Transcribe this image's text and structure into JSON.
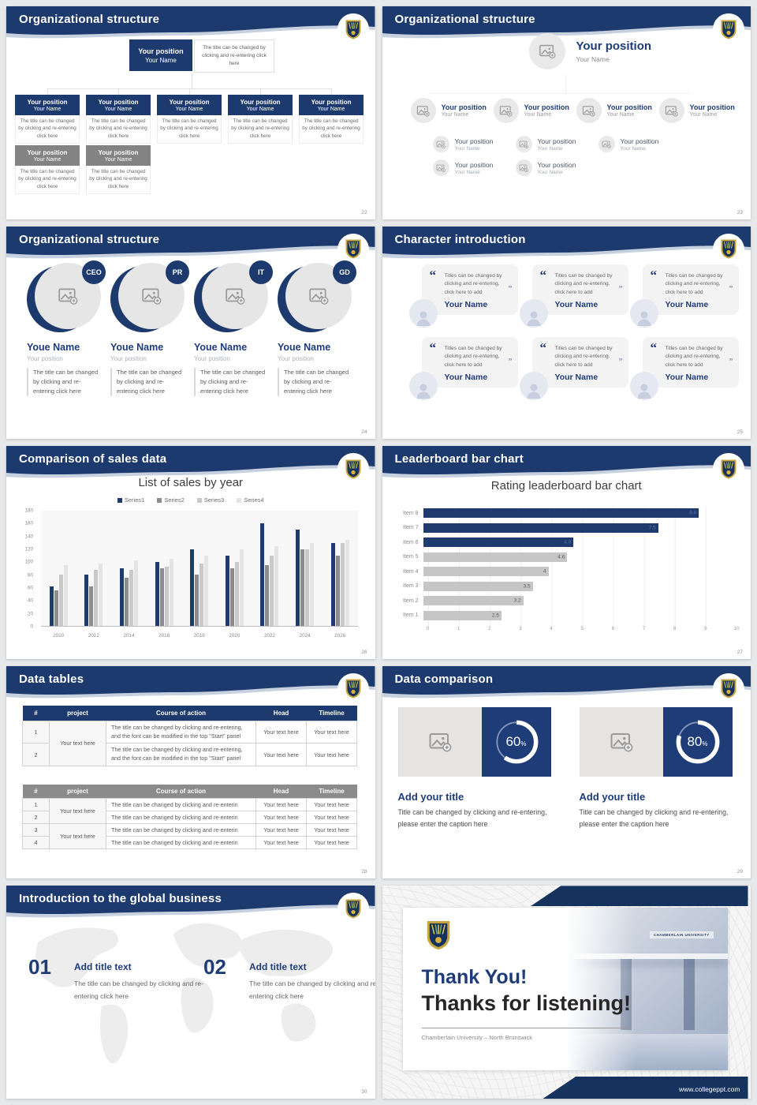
{
  "placeholders": {
    "position": "Your position",
    "name": "Your Name",
    "name_typo": "Youe Name",
    "caption": "The title can be changed by clicking and re-entering click here",
    "caption_long": "The title can be changed by clicking and re-entering, and the font can be modified in the top \"Start\" panel",
    "caption_short": "The title can be changed by clicking and re-enterin",
    "quote": "Titles can be changed by clicking and re-entering, click here to add",
    "your_text": "Your text here"
  },
  "slides": {
    "s22": {
      "title": "Organizational structure",
      "page": "22"
    },
    "s23": {
      "title": "Organizational structure",
      "page": "23"
    },
    "s24": {
      "title": "Organizational structure",
      "page": "24",
      "badges": [
        "CEO",
        "PR",
        "IT",
        "GD"
      ]
    },
    "s25": {
      "title": "Character introduction",
      "page": "25"
    },
    "s26": {
      "title": "Comparison of sales data",
      "page": "26"
    },
    "s27": {
      "title": "Leaderboard bar chart",
      "page": "27"
    },
    "s28": {
      "title": "Data tables",
      "page": "28",
      "table_headers": [
        "#",
        "project",
        "Course of action",
        "Head",
        "Timeline"
      ],
      "t1_rows": [
        "1",
        "2"
      ],
      "t2_rows": [
        "1",
        "2",
        "3",
        "4"
      ]
    },
    "s29": {
      "title": "Data comparison",
      "page": "29",
      "item_title": "Add your title",
      "item_caption": "Title can be changed by clicking and re-entering, please enter the caption here",
      "panels": [
        {
          "percent": "60",
          "unit": "%"
        },
        {
          "percent": "80",
          "unit": "%"
        }
      ]
    },
    "s30": {
      "title": "Introduction to the global business",
      "page": "30",
      "items": [
        {
          "num": "01",
          "title": "Add title text"
        },
        {
          "num": "02",
          "title": "Add title text"
        }
      ]
    },
    "thanks": {
      "line1": "Thank You!",
      "line2": "Thanks for listening!",
      "subtitle": "Chamberlain University – North Brunswick",
      "url": "www.collegeppt.com",
      "photo_sign": "CHAMBERLAIN UNIVERSITY"
    }
  },
  "chart_data": [
    {
      "type": "bar",
      "title": "List of sales by year",
      "categories": [
        "2010",
        "2012",
        "2014",
        "2016",
        "2018",
        "2020",
        "2022",
        "2024",
        "2026"
      ],
      "series": [
        {
          "name": "Series1",
          "color": "#1f3b6d",
          "values": [
            62,
            80,
            90,
            100,
            120,
            110,
            160,
            150,
            130
          ]
        },
        {
          "name": "Series2",
          "color": "#8c8c8c",
          "values": [
            55,
            62,
            75,
            90,
            80,
            90,
            95,
            120,
            110
          ]
        },
        {
          "name": "Series3",
          "color": "#c9c9c9",
          "values": [
            80,
            87,
            88,
            93,
            97,
            100,
            110,
            120,
            130
          ]
        },
        {
          "name": "Series4",
          "color": "#e4e4e4",
          "values": [
            95,
            98,
            102,
            105,
            110,
            120,
            125,
            130,
            135
          ]
        }
      ],
      "xlabel": "",
      "ylabel": "",
      "ylim": [
        0,
        180
      ],
      "ytick_step": 20,
      "grid": false,
      "legend_position": "top"
    },
    {
      "type": "bar-horizontal",
      "title": "Rating leaderboard bar chart",
      "order": "top-to-bottom",
      "categories": [
        "Item 8",
        "Item 7",
        "Item 6",
        "Item 5",
        "Item 4",
        "Item 3",
        "Item 2",
        "Item 1"
      ],
      "values": [
        8.8,
        7.5,
        4.8,
        4.6,
        4,
        3.5,
        3.2,
        2.5
      ],
      "labels": [
        "8.8",
        "7.5",
        "4.8",
        "4.6",
        "4",
        "3.5",
        "3.2",
        "2.5"
      ],
      "colors": [
        "#1f3b6d",
        "#1f3b6d",
        "#1f3b6d",
        "#c6c6c6",
        "#c6c6c6",
        "#c6c6c6",
        "#c6c6c6",
        "#c6c6c6"
      ],
      "xlim": [
        0,
        10
      ],
      "xtick_step": 1,
      "grid": true,
      "legend_position": "none"
    }
  ],
  "colors": {
    "navy": "#1c3a6e",
    "gray_node_header": "#838383",
    "chart_navy": "#1f3b6d",
    "chart_gray": "#c6c6c6",
    "shield_gold": "#c9a63d",
    "shield_green": "#7fb356"
  }
}
